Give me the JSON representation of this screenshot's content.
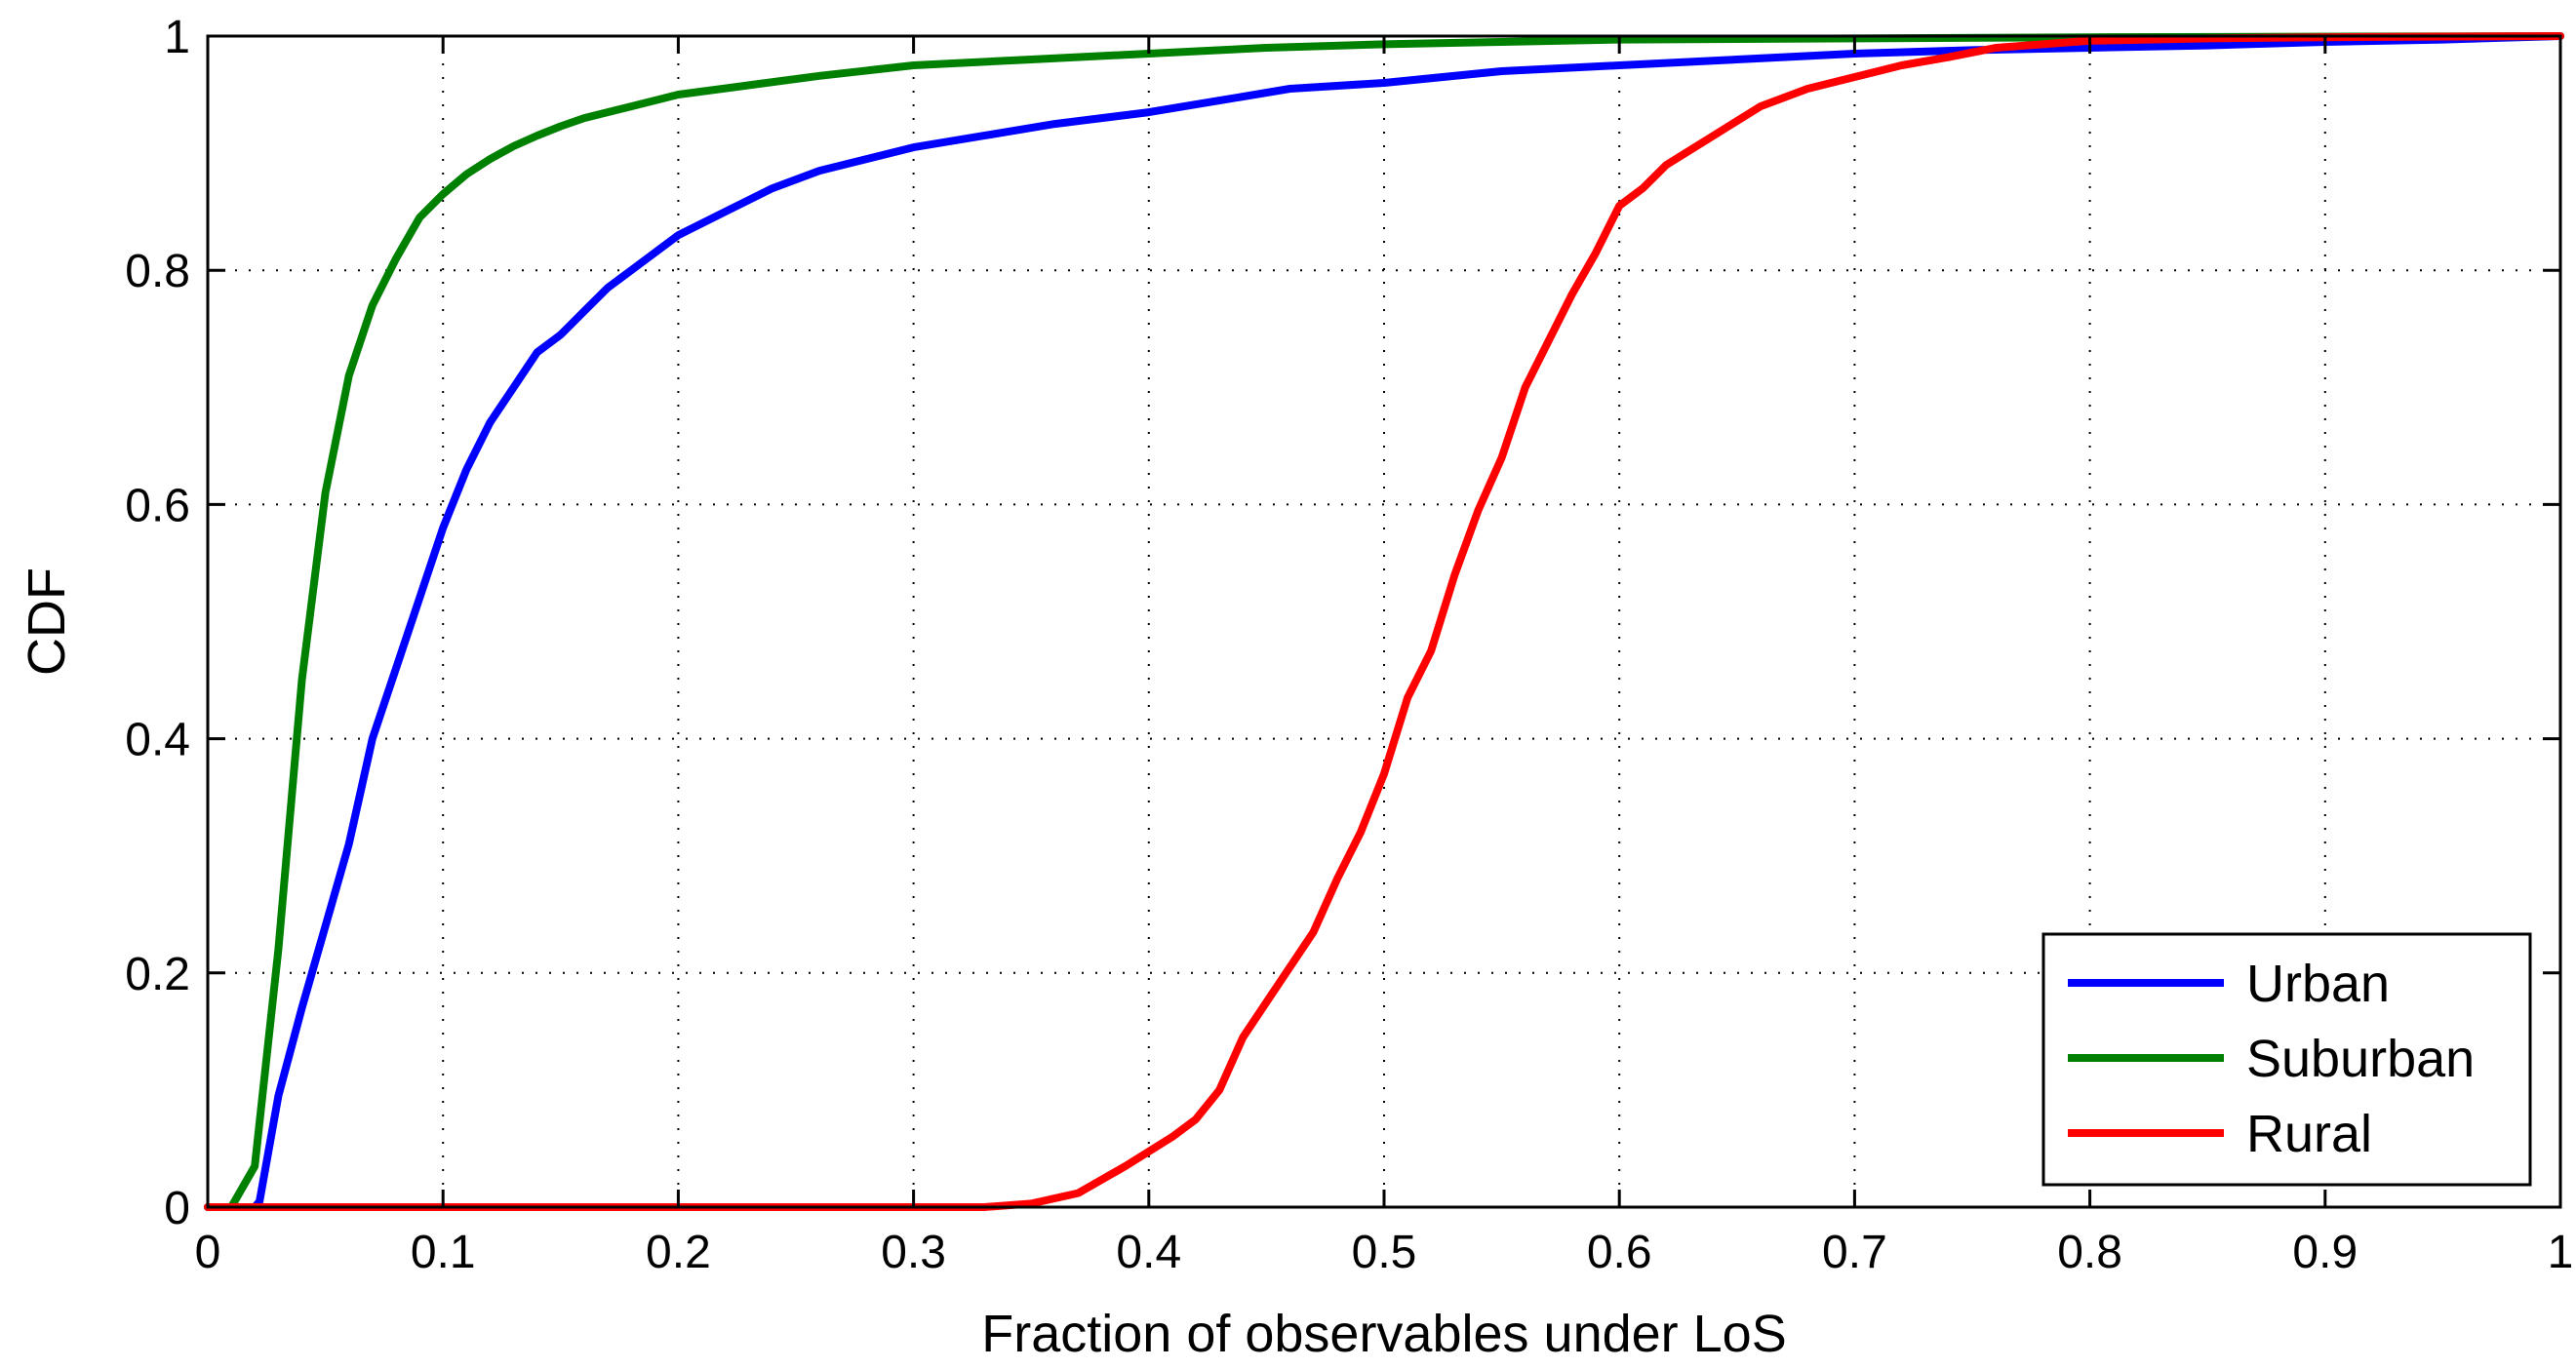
{
  "chart_data": {
    "type": "line",
    "title": "",
    "xlabel": "Fraction of observables under LoS",
    "ylabel": "CDF",
    "xlim": [
      0,
      1
    ],
    "ylim": [
      0,
      1
    ],
    "xticks": [
      0,
      0.1,
      0.2,
      0.3,
      0.4,
      0.5,
      0.6,
      0.7,
      0.8,
      0.9,
      1
    ],
    "xtick_labels": [
      "0",
      "0.1",
      "0.2",
      "0.3",
      "0.4",
      "0.5",
      "0.6",
      "0.7",
      "0.8",
      "0.9",
      "1"
    ],
    "yticks": [
      0,
      0.2,
      0.4,
      0.6,
      0.8,
      1
    ],
    "ytick_labels": [
      "0",
      "0.2",
      "0.4",
      "0.6",
      "0.8",
      "1"
    ],
    "grid": true,
    "legend_position": "bottom-right",
    "series": [
      {
        "name": "Urban",
        "color": "#0000ff",
        "x": [
          0,
          0.02,
          0.022,
          0.03,
          0.04,
          0.05,
          0.06,
          0.07,
          0.08,
          0.09,
          0.1,
          0.11,
          0.12,
          0.13,
          0.14,
          0.15,
          0.16,
          0.17,
          0.18,
          0.19,
          0.2,
          0.22,
          0.24,
          0.26,
          0.28,
          0.3,
          0.33,
          0.36,
          0.4,
          0.43,
          0.46,
          0.5,
          0.55,
          0.6,
          0.65,
          0.7,
          0.75,
          0.8,
          0.85,
          0.9,
          0.95,
          1
        ],
        "y": [
          0,
          0,
          0.005,
          0.095,
          0.17,
          0.24,
          0.31,
          0.4,
          0.46,
          0.52,
          0.58,
          0.63,
          0.67,
          0.7,
          0.73,
          0.745,
          0.765,
          0.785,
          0.8,
          0.815,
          0.83,
          0.85,
          0.87,
          0.885,
          0.895,
          0.905,
          0.915,
          0.925,
          0.935,
          0.945,
          0.955,
          0.96,
          0.97,
          0.975,
          0.98,
          0.985,
          0.988,
          0.99,
          0.992,
          0.995,
          0.997,
          1
        ]
      },
      {
        "name": "Suburban",
        "color": "#008000",
        "x": [
          0,
          0.01,
          0.02,
          0.03,
          0.04,
          0.05,
          0.06,
          0.07,
          0.08,
          0.09,
          0.1,
          0.11,
          0.12,
          0.13,
          0.14,
          0.15,
          0.16,
          0.18,
          0.2,
          0.23,
          0.26,
          0.3,
          0.35,
          0.4,
          0.45,
          0.5,
          0.55,
          0.6,
          0.7,
          0.8,
          1
        ],
        "y": [
          0,
          0,
          0.035,
          0.22,
          0.45,
          0.61,
          0.71,
          0.77,
          0.81,
          0.845,
          0.865,
          0.882,
          0.895,
          0.906,
          0.915,
          0.923,
          0.93,
          0.94,
          0.95,
          0.958,
          0.966,
          0.975,
          0.98,
          0.985,
          0.99,
          0.993,
          0.995,
          0.997,
          0.998,
          0.999,
          1
        ]
      },
      {
        "name": "Rural",
        "color": "#ff0000",
        "x": [
          0,
          0.33,
          0.35,
          0.37,
          0.39,
          0.41,
          0.42,
          0.43,
          0.44,
          0.45,
          0.46,
          0.47,
          0.48,
          0.49,
          0.5,
          0.51,
          0.52,
          0.53,
          0.54,
          0.55,
          0.56,
          0.57,
          0.58,
          0.59,
          0.6,
          0.61,
          0.62,
          0.64,
          0.66,
          0.68,
          0.7,
          0.72,
          0.74,
          0.76,
          0.78,
          0.8,
          0.85,
          0.9,
          1
        ],
        "y": [
          0,
          0,
          0.003,
          0.012,
          0.035,
          0.06,
          0.075,
          0.1,
          0.145,
          0.175,
          0.205,
          0.235,
          0.28,
          0.32,
          0.37,
          0.435,
          0.475,
          0.54,
          0.595,
          0.64,
          0.7,
          0.74,
          0.78,
          0.815,
          0.855,
          0.87,
          0.89,
          0.915,
          0.94,
          0.955,
          0.965,
          0.975,
          0.982,
          0.99,
          0.993,
          0.996,
          0.998,
          0.999,
          1
        ]
      }
    ]
  }
}
